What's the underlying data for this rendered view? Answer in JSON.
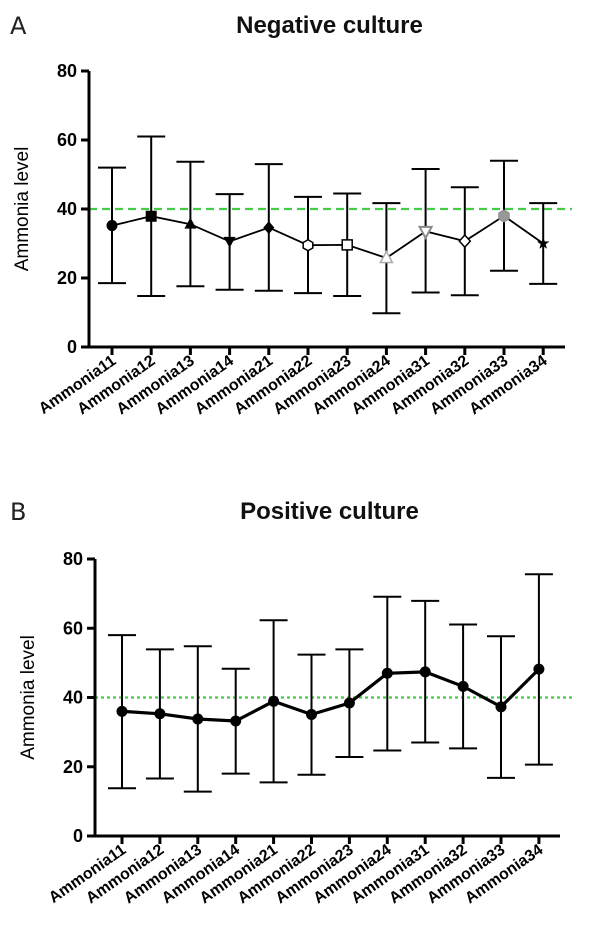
{
  "chart_data": [
    {
      "panel_letter": "A",
      "type": "line",
      "title": "Negative culture",
      "ylabel": "Ammonia level",
      "xlabel": "",
      "ylim": [
        0,
        80
      ],
      "yticks": [
        0,
        20,
        40,
        60,
        80
      ],
      "reference_line": {
        "y": 40,
        "style": "dashed",
        "color": "#44cc44"
      },
      "categories": [
        "Ammonia11",
        "Ammonia12",
        "Ammonia13",
        "Ammonia14",
        "Ammonia21",
        "Ammonia22",
        "Ammonia23",
        "Ammonia24",
        "Ammonia31",
        "Ammonia32",
        "Ammonia33",
        "Ammonia34"
      ],
      "values": [
        35.2,
        37.9,
        35.6,
        30.6,
        34.6,
        29.5,
        29.6,
        25.8,
        33.5,
        30.7,
        38.0,
        30.0
      ],
      "error_upper": [
        52.0,
        61.0,
        53.7,
        44.3,
        53.0,
        43.5,
        44.5,
        41.7,
        51.6,
        46.3,
        54.0,
        41.7
      ],
      "error_lower": [
        18.5,
        14.8,
        17.6,
        16.6,
        16.3,
        15.6,
        14.8,
        9.8,
        15.8,
        15.0,
        22.1,
        18.3
      ],
      "markers": [
        "circle",
        "square",
        "triangle",
        "triangle-down",
        "diamond",
        "hexagon-open",
        "square-open",
        "triangle-open",
        "triangle-down-open",
        "diamond-open",
        "hexagon-gray",
        "star"
      ],
      "line_color": "#000000"
    },
    {
      "panel_letter": "B",
      "type": "line",
      "title": "Positive culture",
      "ylabel": "Ammonia level",
      "xlabel": "",
      "ylim": [
        0,
        80
      ],
      "yticks": [
        0,
        20,
        40,
        60,
        80
      ],
      "reference_line": {
        "y": 40,
        "style": "dotted",
        "color": "#44cc44"
      },
      "categories": [
        "Ammonia11",
        "Ammonia12",
        "Ammonia13",
        "Ammonia14",
        "Ammonia21",
        "Ammonia22",
        "Ammonia23",
        "Ammonia24",
        "Ammonia31",
        "Ammonia32",
        "Ammonia33",
        "Ammonia34"
      ],
      "values": [
        36.0,
        35.3,
        33.8,
        33.2,
        38.9,
        35.1,
        38.4,
        47.0,
        47.4,
        43.2,
        37.3,
        48.2
      ],
      "error_upper": [
        58.0,
        53.9,
        54.8,
        48.3,
        62.3,
        52.4,
        53.9,
        69.1,
        67.9,
        61.1,
        57.7,
        75.6
      ],
      "error_lower": [
        13.8,
        16.6,
        12.8,
        18.0,
        15.5,
        17.7,
        22.8,
        24.7,
        27.0,
        25.3,
        16.8,
        20.6
      ],
      "markers": [
        "circle",
        "circle",
        "circle",
        "circle",
        "circle",
        "circle",
        "circle",
        "circle",
        "circle",
        "circle",
        "circle",
        "circle"
      ],
      "line_color": "#000000"
    }
  ]
}
